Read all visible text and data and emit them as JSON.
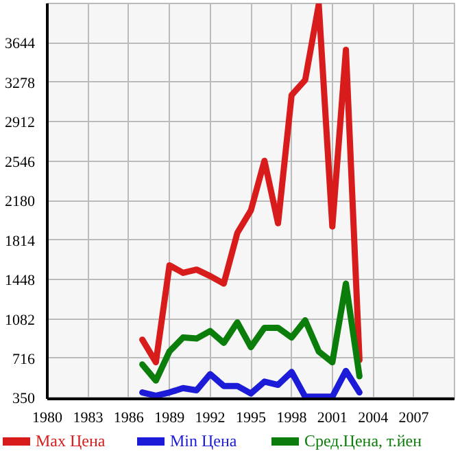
{
  "chart_data": {
    "type": "line",
    "x": [
      1987,
      1988,
      1989,
      1990,
      1991,
      1992,
      1993,
      1994,
      1995,
      1996,
      1997,
      1998,
      1999,
      2000,
      2001,
      2002,
      2003
    ],
    "series": [
      {
        "name": "Max Цена",
        "color": "#d81c1c",
        "values": [
          890,
          680,
          1580,
          1510,
          1540,
          1480,
          1410,
          1880,
          2090,
          2550,
          1970,
          3160,
          3300,
          4000,
          1940,
          3580,
          700
        ]
      },
      {
        "name": "Min Цена",
        "color": "#1c1cd8",
        "values": [
          400,
          370,
          400,
          440,
          420,
          570,
          460,
          460,
          390,
          500,
          470,
          590,
          360,
          360,
          360,
          600,
          400
        ]
      },
      {
        "name": "Сред.Цена, т.йен",
        "color": "#0a7d0a",
        "values": [
          660,
          510,
          780,
          910,
          900,
          970,
          860,
          1050,
          820,
          1000,
          1000,
          910,
          1070,
          780,
          680,
          1410,
          550
        ]
      }
    ],
    "xlim": [
      1980,
      2010
    ],
    "xticks": [
      1980,
      1983,
      1986,
      1989,
      1992,
      1995,
      1998,
      2001,
      2004,
      2007
    ],
    "ylim": [
      340,
      4010
    ],
    "yticks": [
      350,
      716,
      1082,
      1448,
      1814,
      2180,
      2546,
      2912,
      3278,
      3644
    ],
    "grid": true,
    "legend": "bottom",
    "marker": "none",
    "line_style": "solid"
  }
}
